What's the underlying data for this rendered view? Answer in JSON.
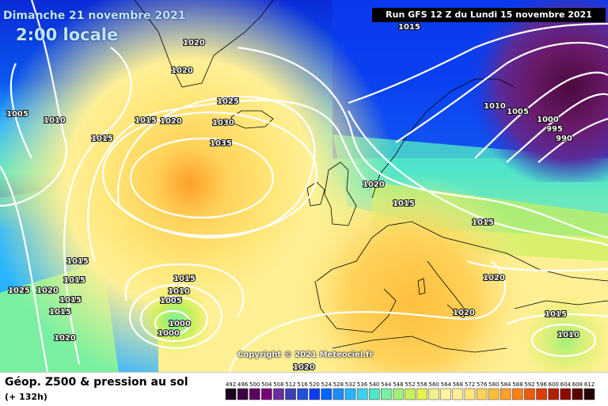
{
  "header": {
    "date": "Dimanche 21 novembre 2021",
    "time": "2:00 locale",
    "run_info": "Run GFS 12 Z du Lundi 15 novembre 2021"
  },
  "map": {
    "copyright": "Copyright © 2021 Meteociel.fr",
    "isobar_labels": [
      "1015",
      "1020",
      "1020",
      "1020",
      "1005",
      "1010",
      "1015",
      "1020",
      "1025",
      "1030",
      "1035",
      "1015",
      "1020",
      "1020",
      "1025",
      "1015",
      "1015",
      "1015",
      "1015",
      "1010",
      "1005",
      "1000",
      "1000",
      "1020",
      "1015",
      "1015",
      "1010",
      "1005",
      "1000",
      "995",
      "990",
      "1015",
      "1020",
      "1020",
      "1015",
      "1010"
    ]
  },
  "legend": {
    "title": "Géop. Z500 & pression au sol",
    "subtitle": "(+ 132h)",
    "scale_values": [
      "492",
      "496",
      "500",
      "504",
      "508",
      "512",
      "516",
      "520",
      "524",
      "528",
      "532",
      "536",
      "540",
      "544",
      "548",
      "552",
      "556",
      "560",
      "564",
      "568",
      "572",
      "576",
      "580",
      "584",
      "588",
      "592",
      "596",
      "600",
      "604",
      "608",
      "612"
    ],
    "scale_colors": [
      "#1a001e",
      "#3c0046",
      "#5a005f",
      "#780078",
      "#6a2f9a",
      "#3e3fb4",
      "#1e50dc",
      "#0a3cf0",
      "#0064ff",
      "#1e8cff",
      "#28b4ff",
      "#3cd2f0",
      "#50e6c8",
      "#78f0a0",
      "#a0f078",
      "#c8f05a",
      "#e6f050",
      "#f0f08c",
      "#fff5a0",
      "#fff096",
      "#ffe678",
      "#ffd25a",
      "#ffbe3c",
      "#ffa028",
      "#ff8214",
      "#f05a0a",
      "#dc3c00",
      "#b41e00",
      "#8c0a00",
      "#5a0000",
      "#280000"
    ]
  }
}
